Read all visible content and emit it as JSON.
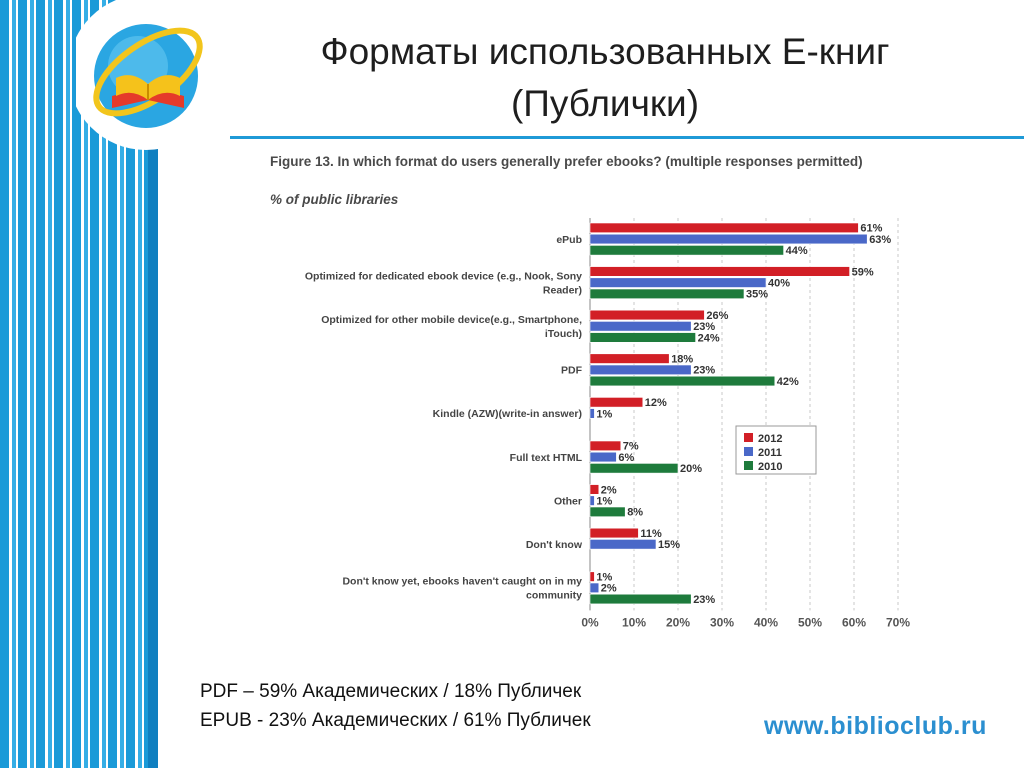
{
  "slide": {
    "title_line1": "Форматы использованных Е-книг",
    "title_line2": "(Публички)",
    "note_pdf": "PDF – 59% Академических / 18% Публичек",
    "note_epub": "EPUB -  23% Академических / 61% Публичек",
    "site": "www.biblioclub.ru"
  },
  "chart_data": {
    "type": "bar",
    "orientation": "horizontal",
    "title": "Figure 13. In which format do users generally prefer ebooks? (multiple responses permitted)",
    "subtitle": "% of public libraries",
    "categories": [
      [
        "ePub"
      ],
      [
        "Optimized for dedicated ebook device (e.g., Nook, Sony",
        "Reader)"
      ],
      [
        "Optimized for other mobile device(e.g., Smartphone,",
        "iTouch)"
      ],
      [
        "PDF"
      ],
      [
        "Kindle (AZW)(write-in answer)"
      ],
      [
        "Full text HTML"
      ],
      [
        "Other"
      ],
      [
        "Don't know"
      ],
      [
        "Don't know yet, ebooks haven't caught on in my",
        "community"
      ]
    ],
    "series": [
      {
        "name": "2012",
        "color": "#d21f26",
        "values": [
          61,
          59,
          26,
          18,
          12,
          7,
          2,
          11,
          1
        ]
      },
      {
        "name": "2011",
        "color": "#4a68c8",
        "values": [
          63,
          40,
          23,
          23,
          1,
          6,
          1,
          15,
          2
        ]
      },
      {
        "name": "2010",
        "color": "#1e7b3c",
        "values": [
          44,
          35,
          24,
          42,
          null,
          20,
          8,
          null,
          23
        ]
      }
    ],
    "x_ticks": [
      "0%",
      "10%",
      "20%",
      "30%",
      "40%",
      "50%",
      "60%",
      "70%"
    ],
    "xlim": [
      0,
      70
    ],
    "grid": "dashed vertical",
    "legend": "right"
  }
}
